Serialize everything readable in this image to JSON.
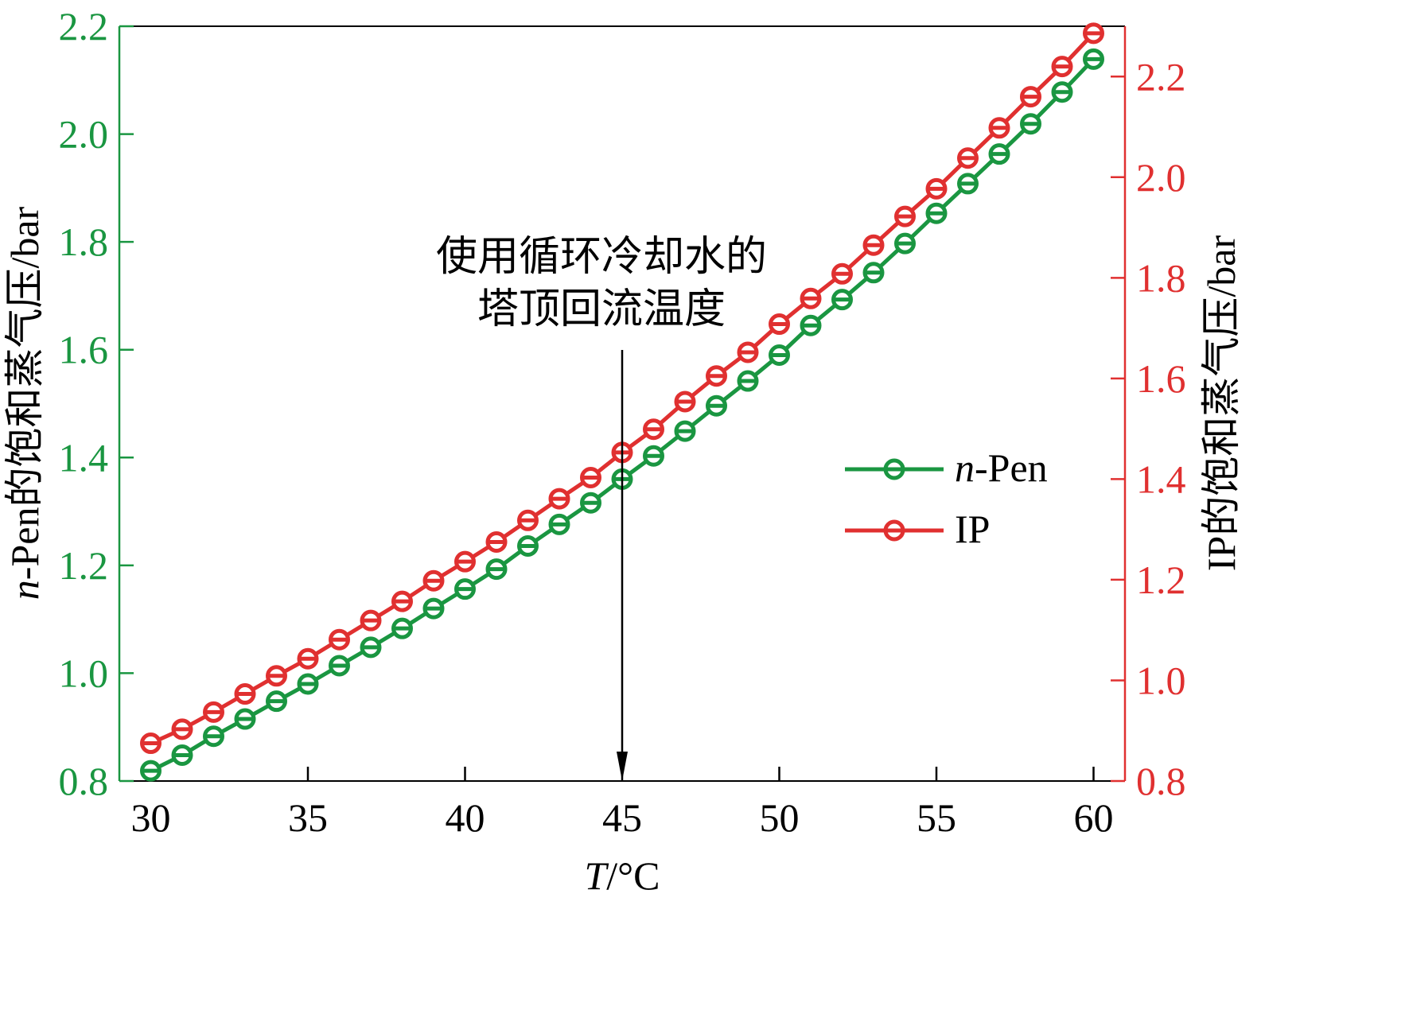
{
  "chart_data": {
    "type": "line",
    "xlabel_italic": "T",
    "xlabel_rest": "/°C",
    "ylabel_left_italic": "n",
    "ylabel_left_rest": "-Pen的饱和蒸气压/bar",
    "ylabel_right": "IP的饱和蒸气压/bar",
    "xlim": [
      29,
      61
    ],
    "ylim_left": [
      0.8,
      2.2
    ],
    "ylim_right": [
      0.8,
      2.3
    ],
    "x_ticks": [
      30,
      35,
      40,
      45,
      50,
      55,
      60
    ],
    "x_tick_labels": [
      "30",
      "35",
      "40",
      "45",
      "50",
      "55",
      "60"
    ],
    "y_left_ticks": [
      0.8,
      1.0,
      1.2,
      1.4,
      1.6,
      1.8,
      2.0,
      2.2
    ],
    "y_left_tick_labels": [
      "0.8",
      "1.0",
      "1.2",
      "1.4",
      "1.6",
      "1.8",
      "2.0",
      "2.2"
    ],
    "y_right_ticks": [
      0.8,
      1.0,
      1.2,
      1.4,
      1.6,
      1.8,
      2.0,
      2.2
    ],
    "y_right_tick_labels": [
      "0.8",
      "1.0",
      "1.2",
      "1.4",
      "1.6",
      "1.8",
      "2.0",
      "2.2"
    ],
    "x": [
      30,
      31,
      32,
      33,
      34,
      35,
      36,
      37,
      38,
      39,
      40,
      41,
      42,
      43,
      44,
      45,
      46,
      47,
      48,
      49,
      50,
      51,
      52,
      53,
      54,
      55,
      56,
      57,
      58,
      59,
      60
    ],
    "series": [
      {
        "name_italic": "n",
        "name_rest": "-Pen",
        "axis": "left",
        "color": "#1a9641",
        "values": [
          0.819,
          0.848,
          0.883,
          0.915,
          0.948,
          0.98,
          1.014,
          1.048,
          1.083,
          1.12,
          1.156,
          1.193,
          1.236,
          1.276,
          1.316,
          1.36,
          1.403,
          1.449,
          1.496,
          1.542,
          1.59,
          1.645,
          1.693,
          1.743,
          1.797,
          1.853,
          1.908,
          1.963,
          2.019,
          2.078,
          2.139
        ]
      },
      {
        "name": "IP",
        "axis": "right",
        "color": "#e03030",
        "values": [
          0.875,
          0.903,
          0.937,
          0.973,
          1.009,
          1.043,
          1.081,
          1.119,
          1.157,
          1.198,
          1.236,
          1.275,
          1.318,
          1.361,
          1.403,
          1.453,
          1.499,
          1.554,
          1.605,
          1.652,
          1.708,
          1.759,
          1.808,
          1.865,
          1.922,
          1.977,
          2.038,
          2.098,
          2.16,
          2.22,
          2.286
        ]
      }
    ],
    "annotation": {
      "lines": [
        "使用循环冷却水的",
        "塔顶回流温度"
      ],
      "x": 45
    },
    "legend_position": "right-middle",
    "grid": false
  }
}
